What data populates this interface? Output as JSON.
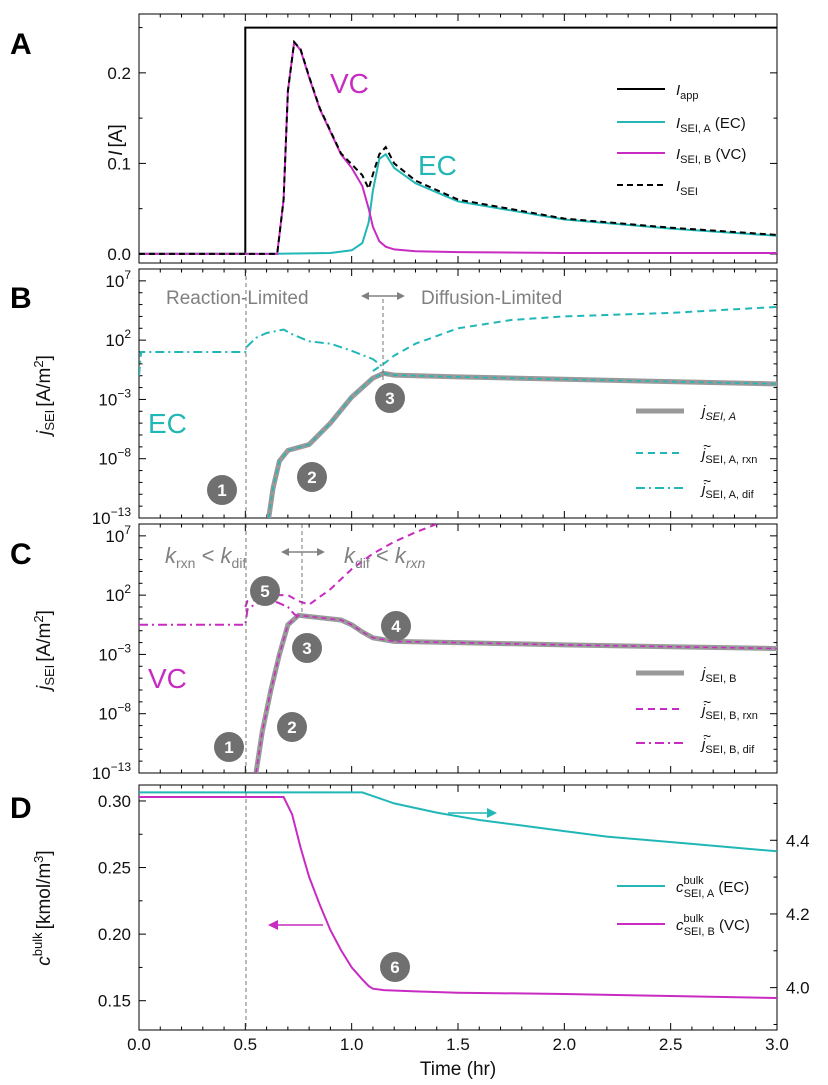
{
  "chart_data": [
    {
      "panel": "A",
      "type": "line",
      "ylabel": "I [A]",
      "ylim": [
        -0.01,
        0.265
      ],
      "yticks": [
        "0.0",
        "0.1",
        "0.2"
      ],
      "annotations": [
        "VC",
        "EC"
      ],
      "legend": [
        {
          "label": "I",
          "sub": "app",
          "suffix": ""
        },
        {
          "label": "I",
          "sub": "SEI, A",
          "suffix": " (EC)"
        },
        {
          "label": "I",
          "sub": "SEI, B",
          "suffix": " (VC)"
        },
        {
          "label": "I",
          "sub": "SEI",
          "suffix": ""
        }
      ],
      "series": [
        {
          "name": "I_app",
          "x": [
            0,
            0.5,
            0.5,
            3.0
          ],
          "y": [
            0.0,
            0.0,
            0.25,
            0.25
          ]
        },
        {
          "name": "I_SEI,A (EC)",
          "x": [
            0,
            0.6,
            0.9,
            1.0,
            1.05,
            1.08,
            1.1,
            1.13,
            1.16,
            1.2,
            1.3,
            1.5,
            2.0,
            2.5,
            3.0
          ],
          "y": [
            0.0,
            0.0,
            0.001,
            0.004,
            0.012,
            0.035,
            0.07,
            0.105,
            0.11,
            0.095,
            0.078,
            0.058,
            0.038,
            0.028,
            0.02
          ]
        },
        {
          "name": "I_SEI,B (VC)",
          "x": [
            0,
            0.6,
            0.65,
            0.68,
            0.7,
            0.73,
            0.76,
            0.8,
            0.85,
            0.9,
            0.95,
            1.0,
            1.05,
            1.08,
            1.1,
            1.13,
            1.16,
            1.2,
            1.3,
            1.5,
            2.0,
            3.0
          ],
          "y": [
            0.0,
            0.0,
            0.0,
            0.06,
            0.18,
            0.234,
            0.225,
            0.195,
            0.16,
            0.135,
            0.11,
            0.095,
            0.075,
            0.05,
            0.03,
            0.014,
            0.008,
            0.005,
            0.003,
            0.002,
            0.001,
            0.001
          ]
        },
        {
          "name": "I_SEI",
          "x": [
            0,
            0.6,
            0.65,
            0.68,
            0.7,
            0.73,
            0.76,
            0.8,
            0.85,
            0.9,
            0.95,
            1.0,
            1.05,
            1.08,
            1.1,
            1.13,
            1.16,
            1.2,
            1.3,
            1.5,
            2.0,
            2.5,
            3.0
          ],
          "y": [
            0.0,
            0.0,
            0.0,
            0.06,
            0.18,
            0.234,
            0.226,
            0.196,
            0.161,
            0.136,
            0.111,
            0.099,
            0.087,
            0.072,
            0.088,
            0.11,
            0.118,
            0.1,
            0.081,
            0.06,
            0.039,
            0.029,
            0.021
          ]
        }
      ]
    },
    {
      "panel": "B",
      "type": "line",
      "yscale": "log",
      "ylabel": "j_SEI [A/m^2]",
      "ylim_exp": [
        -13,
        8
      ],
      "yticks_exp": [
        -13,
        -8,
        -3,
        2,
        7
      ],
      "regimes": [
        "Reaction-Limited",
        "Diffusion-Limited"
      ],
      "label": "EC",
      "markers": [
        "1",
        "2",
        "3"
      ],
      "legend": [
        {
          "label": "j",
          "sub": "SEI, A",
          "tilde": false
        },
        {
          "label": "j",
          "sub": "SEI, A, rxn",
          "tilde": true
        },
        {
          "label": "j",
          "sub": "SEI, A, dif",
          "tilde": true
        }
      ],
      "series": [
        {
          "name": "j_SEI,A",
          "x": [
            0.61,
            0.63,
            0.66,
            0.7,
            0.8,
            0.9,
            1.0,
            1.1,
            1.15,
            1.2,
            1.5,
            2.0,
            2.5,
            3.0
          ],
          "y_exp": [
            -13.0,
            -10.5,
            -8.2,
            -7.3,
            -6.8,
            -5.0,
            -2.8,
            -1.2,
            -0.8,
            -0.95,
            -1.1,
            -1.3,
            -1.5,
            -1.7
          ]
        },
        {
          "name": "j_SEI,A,rxn",
          "x": [
            1.1,
            1.15,
            1.2,
            1.3,
            1.5,
            1.75,
            2.0,
            2.5,
            3.0
          ],
          "y_exp": [
            -0.6,
            0.0,
            0.7,
            1.7,
            3.0,
            3.7,
            4.0,
            4.3,
            4.8
          ]
        },
        {
          "name": "j_SEI,A,dif",
          "x": [
            0.0,
            0.01,
            0.5,
            0.51,
            0.55,
            0.6,
            0.68,
            0.72,
            0.8,
            0.9,
            1.0,
            1.1,
            1.15
          ],
          "y_exp": [
            -1.0,
            1.0,
            1.0,
            1.5,
            2.2,
            2.6,
            2.9,
            2.5,
            1.9,
            1.7,
            1.1,
            0.4,
            -0.3
          ]
        }
      ]
    },
    {
      "panel": "C",
      "type": "line",
      "yscale": "log",
      "ylabel": "j_SEI [A/m^2]",
      "ylim_exp": [
        -13,
        8
      ],
      "yticks_exp": [
        -13,
        -8,
        -3,
        2,
        7
      ],
      "regimes": [
        {
          "k1": "k",
          "s1": "rxn",
          "op": " < ",
          "k2": "k",
          "s2": "dif"
        },
        {
          "k1": "k",
          "s1": "dif",
          "op": " < ",
          "k2": "k",
          "s2": "rxn"
        }
      ],
      "label": "VC",
      "markers": [
        "1",
        "2",
        "3",
        "4",
        "5"
      ],
      "legend": [
        {
          "label": "j",
          "sub": "SEI, B",
          "tilde": false
        },
        {
          "label": "j",
          "sub": "SEI, B, rxn",
          "tilde": true
        },
        {
          "label": "j",
          "sub": "SEI, B, dif",
          "tilde": true
        }
      ],
      "series": [
        {
          "name": "j_SEI,B",
          "x": [
            0.55,
            0.58,
            0.62,
            0.66,
            0.7,
            0.75,
            0.85,
            0.95,
            1.0,
            1.05,
            1.1,
            1.2,
            1.5,
            2.0,
            2.5,
            3.0
          ],
          "y_exp": [
            -13.0,
            -9.5,
            -6.0,
            -3.0,
            -0.5,
            0.3,
            0.1,
            -0.1,
            -0.5,
            -1.1,
            -1.6,
            -1.9,
            -2.0,
            -2.2,
            -2.35,
            -2.5
          ]
        },
        {
          "name": "j_SEI,B,rxn",
          "x": [
            0.5,
            0.51,
            0.6,
            0.65,
            0.7,
            0.75,
            0.8,
            0.9,
            1.0,
            1.1,
            1.2,
            1.3,
            1.4
          ],
          "y_exp": [
            1.0,
            1.5,
            1.7,
            2.0,
            2.0,
            1.5,
            1.2,
            2.5,
            4.2,
            5.5,
            6.5,
            7.3,
            8.0
          ]
        },
        {
          "name": "j_SEI,B,dif",
          "x": [
            0.0,
            0.5,
            0.51,
            0.55,
            0.65,
            0.7,
            0.73,
            0.75
          ],
          "y_exp": [
            -0.5,
            -0.5,
            0.8,
            1.3,
            1.4,
            1.0,
            0.4,
            0.2
          ]
        }
      ]
    },
    {
      "panel": "D",
      "type": "line",
      "xlabel": "Time (hr)",
      "xlim": [
        0.0,
        3.0
      ],
      "xticks": [
        "0.0",
        "0.5",
        "1.0",
        "1.5",
        "2.0",
        "2.5",
        "3.0"
      ],
      "ylabel": "c^bulk [kmol/m^3]",
      "ylim": [
        0.128,
        0.312
      ],
      "yticks": [
        "0.15",
        "0.20",
        "0.25",
        "0.30"
      ],
      "ylim_right": [
        3.885,
        4.55
      ],
      "yticks_right": [
        "4.0",
        "4.2",
        "4.4"
      ],
      "markers": [
        "6"
      ],
      "legend": [
        {
          "label": "c",
          "sup": "bulk",
          "sub": "SEI, A",
          "suffix": " (EC)"
        },
        {
          "label": "c",
          "sup": "bulk",
          "sub": "SEI, B",
          "suffix": " (VC)"
        }
      ],
      "series": [
        {
          "name": "c_SEI,A (EC)",
          "axis": "right",
          "x": [
            0.0,
            1.05,
            1.1,
            1.2,
            1.4,
            1.6,
            1.8,
            2.0,
            2.2,
            2.4,
            2.6,
            2.8,
            3.0
          ],
          "y": [
            4.53,
            4.53,
            4.52,
            4.5,
            4.475,
            4.455,
            4.44,
            4.425,
            4.41,
            4.4,
            4.39,
            4.38,
            4.37
          ]
        },
        {
          "name": "c_SEI,B (VC)",
          "axis": "left",
          "x": [
            0.0,
            0.68,
            0.72,
            0.76,
            0.8,
            0.85,
            0.9,
            0.95,
            1.0,
            1.05,
            1.08,
            1.1,
            1.15,
            1.3,
            1.5,
            2.0,
            2.5,
            3.0
          ],
          "y": [
            0.303,
            0.303,
            0.29,
            0.265,
            0.243,
            0.222,
            0.203,
            0.188,
            0.175,
            0.166,
            0.161,
            0.159,
            0.158,
            0.157,
            0.156,
            0.155,
            0.1535,
            0.152
          ]
        }
      ]
    }
  ],
  "panels": [
    "A",
    "B",
    "C",
    "D"
  ],
  "colors": {
    "app": "#000000",
    "ec": "#21b7b7",
    "vc": "#c82bc1",
    "total": "#000000",
    "grey": "#808080",
    "marker": "#707070"
  }
}
